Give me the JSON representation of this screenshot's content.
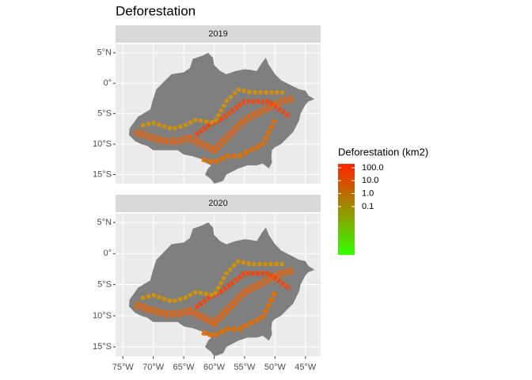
{
  "chart_data": {
    "type": "raster-map",
    "title": "Deforestation",
    "facets": [
      "2019",
      "2020"
    ],
    "xlim": [
      -76.2,
      -42.5
    ],
    "ylim": [
      -16.5,
      6.4
    ],
    "xticks": [
      {
        "value": -75,
        "label": "75°W"
      },
      {
        "value": -70,
        "label": "70°W"
      },
      {
        "value": -65,
        "label": "65°W"
      },
      {
        "value": -60,
        "label": "60°W"
      },
      {
        "value": -55,
        "label": "55°W"
      },
      {
        "value": -50,
        "label": "50°W"
      },
      {
        "value": -45,
        "label": "45°W"
      }
    ],
    "yticks": [
      {
        "value": 5,
        "label": "5°N"
      },
      {
        "value": 0,
        "label": "0°"
      },
      {
        "value": -5,
        "label": "5°S"
      },
      {
        "value": -10,
        "label": "10°S"
      },
      {
        "value": -15,
        "label": "15°S"
      }
    ],
    "grid": true,
    "legend": {
      "title": "Deforestation (km2)",
      "scale": "log",
      "limits": [
        1.8e-05,
        200
      ],
      "breaks": [
        {
          "value": 100,
          "label": "100.0"
        },
        {
          "value": 10,
          "label": "10.0"
        },
        {
          "value": 1,
          "label": "1.0"
        },
        {
          "value": 0.1,
          "label": "0.1"
        }
      ],
      "colors": [
        "#33ff00",
        "#ff2200"
      ]
    }
  }
}
